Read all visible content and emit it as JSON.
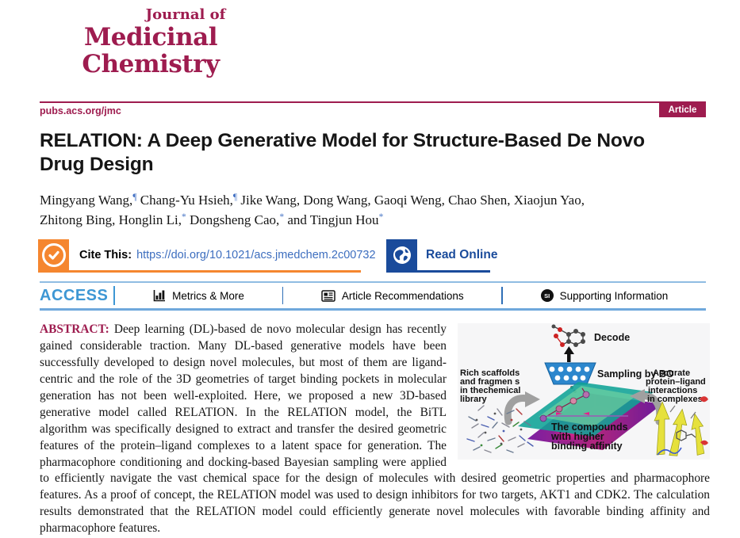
{
  "masthead": {
    "journal_line1": "Journal of",
    "journal_line2": "Medicinal",
    "journal_line3": "Chemistry",
    "site_url": "pubs.acs.org/jmc",
    "article_badge": "Article",
    "brand_color": "#9E1C4F"
  },
  "title": {
    "line1": "RELATION: A Deep Generative Model for Structure-Based De Novo",
    "line2": "Drug Design"
  },
  "authors": {
    "segments": [
      {
        "text": "Mingyang Wang,"
      },
      {
        "mark": "¶"
      },
      {
        "text": " Chang-Yu Hsieh,"
      },
      {
        "mark": "¶"
      },
      {
        "text": " Jike Wang, Dong Wang, Gaoqi Weng, Chao Shen, Xiaojun Yao,"
      },
      {
        "br": true
      },
      {
        "text": "Zhitong Bing, Honglin Li,"
      },
      {
        "mark": "*"
      },
      {
        "text": " Dongsheng Cao,"
      },
      {
        "mark": "*"
      },
      {
        "text": " and Tingjun Hou"
      },
      {
        "mark": "*"
      }
    ]
  },
  "cite": {
    "label": "Cite This:",
    "doi": "https://doi.org/10.1021/acs.jmedchem.2c00732",
    "read_online": "Read Online",
    "accent_orange": "#F5862F",
    "accent_blue": "#1A4B9B"
  },
  "access_bar": {
    "access_label": "ACCESS",
    "access_color": "#3E97D4",
    "items": [
      {
        "label": "Metrics & More",
        "icon": "bar-chart-icon"
      },
      {
        "label": "Article Recommendations",
        "icon": "article-icon"
      },
      {
        "label": "Supporting Information",
        "icon": "si-icon",
        "icon_text": "SI"
      }
    ]
  },
  "abstract": {
    "label": "ABSTRACT:",
    "text": " Deep learning (DL)-based de novo molecular design has recently gained considerable traction. Many DL-based generative models have been successfully developed to design novel molecules, but most of them are ligand-centric and the role of the 3D geometries of target binding pockets in molecular generation has not been well-exploited. Here, we proposed a new 3D-based generative model called RELATION. In the RELATION model, the BiTL algorithm was specifically designed to extract and transfer the desired geometric features of the protein–ligand complexes to a latent space for generation. The pharmacophore conditioning and docking-based Bayesian sampling were applied to efficiently navigate the vast chemical space for the design of molecules with desired geometric properties and pharmacophore features. As a proof of concept, the RELATION model was used to design inhibitors for two targets, AKT1 and CDK2. The calculation results demonstrated that the RELATION model could efficiently generate novel molecules with favorable binding affinity and pharmacophore features."
  },
  "figure": {
    "decode_label": "Decode",
    "sampling_label": "Sampling by BO",
    "left_caption": [
      "Rich scaffolds",
      "and fragmen s",
      "in thechemical",
      "library"
    ],
    "right_caption": [
      "Accurate",
      "protein–ligand",
      "interactions",
      "in complexes"
    ],
    "bottom_caption": [
      "The compounds",
      "with higher",
      "binding affinity"
    ]
  }
}
